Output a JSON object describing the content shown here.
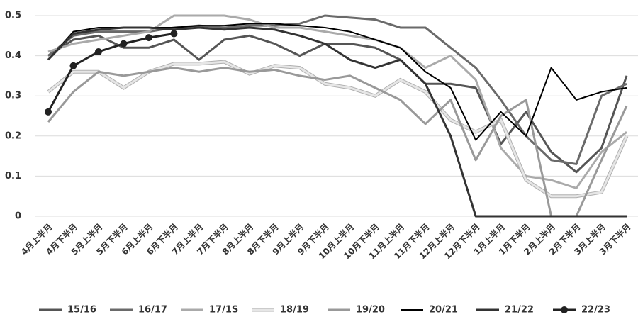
{
  "chart_data": {
    "type": "line",
    "categories": [
      "4月上半月",
      "4月下半月",
      "5月上半月",
      "5月下半月",
      "6月上半月",
      "6月下半月",
      "7月上半月",
      "7月下半月",
      "8月上半月",
      "8月下半月",
      "9月上半月",
      "9月下半月",
      "10月上半月",
      "10月下半月",
      "11月上半月",
      "11月下半月",
      "12月上半月",
      "12月下半月",
      "1月上半月",
      "1月下半月",
      "2月上半月",
      "2月下半月",
      "3月上半月",
      "3月下半月"
    ],
    "ylim": [
      0,
      0.5
    ],
    "yticks": [
      0,
      0.1,
      0.2,
      0.3,
      0.4,
      0.5
    ],
    "grid": true,
    "legend": "bottom",
    "series": [
      {
        "name": "15/16",
        "color": "#555555",
        "width": 3,
        "values": [
          0.4,
          0.44,
          0.45,
          0.42,
          0.42,
          0.44,
          0.39,
          0.44,
          0.45,
          0.43,
          0.4,
          0.43,
          0.43,
          0.42,
          0.39,
          0.33,
          0.33,
          0.32,
          0.18,
          0.26,
          0.16,
          0.11,
          0.17,
          0.35
        ]
      },
      {
        "name": "16/17",
        "color": "#6a6a6a",
        "width": 3,
        "values": [
          0.4,
          0.45,
          0.46,
          0.46,
          0.46,
          0.47,
          0.475,
          0.47,
          0.475,
          0.475,
          0.48,
          0.5,
          0.495,
          0.49,
          0.47,
          0.47,
          0.42,
          0.37,
          0.29,
          0.2,
          0.14,
          0.13,
          0.3,
          0.33
        ]
      },
      {
        "name": "17/1S",
        "color": "#aaaaaa",
        "width": 3,
        "values": [
          0.41,
          0.43,
          0.44,
          0.45,
          0.46,
          0.5,
          0.5,
          0.5,
          0.49,
          0.47,
          0.47,
          0.46,
          0.45,
          0.44,
          0.42,
          0.37,
          0.4,
          0.34,
          0.17,
          0.1,
          0.09,
          0.07,
          0.16,
          0.21
        ]
      },
      {
        "name": "18/19",
        "color": "#e6e6e6",
        "width": 3,
        "values": [
          0.31,
          0.36,
          0.36,
          0.32,
          0.36,
          0.38,
          0.38,
          0.385,
          0.355,
          0.375,
          0.37,
          0.33,
          0.32,
          0.3,
          0.34,
          0.31,
          0.24,
          0.21,
          0.24,
          0.09,
          0.05,
          0.05,
          0.06,
          0.2
        ]
      },
      {
        "name": "19/20",
        "color": "#999999",
        "width": 3,
        "values": [
          0.235,
          0.31,
          0.36,
          0.35,
          0.36,
          0.37,
          0.36,
          0.37,
          0.36,
          0.365,
          0.35,
          0.34,
          0.35,
          0.32,
          0.29,
          0.23,
          0.29,
          0.14,
          0.25,
          0.29,
          0,
          0,
          0.14,
          0.275
        ]
      },
      {
        "name": "20/21",
        "color": "#000000",
        "width": 2,
        "values": [
          0.39,
          0.46,
          0.47,
          0.47,
          0.47,
          0.47,
          0.475,
          0.475,
          0.48,
          0.48,
          0.475,
          0.47,
          0.46,
          0.44,
          0.42,
          0.36,
          0.32,
          0.19,
          0.26,
          0.2,
          0.37,
          0.29,
          0.31,
          0.32
        ]
      },
      {
        "name": "21/22",
        "color": "#333333",
        "width": 3,
        "values": [
          0.39,
          0.455,
          0.465,
          0.47,
          0.47,
          0.465,
          0.47,
          0.465,
          0.47,
          0.465,
          0.45,
          0.43,
          0.39,
          0.37,
          0.39,
          0.33,
          0.2,
          0,
          0,
          0,
          0,
          0,
          0,
          0
        ]
      },
      {
        "name": "22/23",
        "color": "#222222",
        "width": 3,
        "marker": "circle",
        "values": [
          0.26,
          0.375,
          0.41,
          0.43,
          0.445,
          0.455,
          null,
          null,
          null,
          null,
          null,
          null,
          null,
          null,
          null,
          null,
          null,
          null,
          null,
          null,
          null,
          null,
          null,
          null
        ]
      }
    ]
  }
}
